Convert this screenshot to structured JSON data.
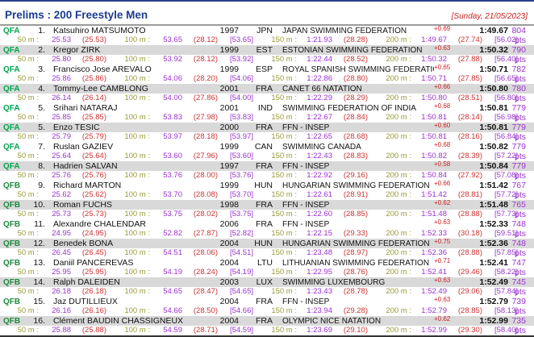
{
  "header": {
    "title": "Prelims : 200 Freestyle Men",
    "date": "[Sunday, 21/05/2023]"
  },
  "labels": {
    "d50": "50 m :",
    "d100": "100 m :",
    "d150": "150 m :",
    "d200": "200 m :"
  },
  "colors": {
    "title_blue": "#1c3c90",
    "date_red": "#cc2222",
    "qfa_green": "#00a651",
    "qfb_green": "#1f8a3d",
    "split_label_olive": "#99993a",
    "split_value_purple": "#9933cc",
    "split_diff_red": "#cc3333",
    "points_purple": "#9933cc",
    "stripe_gray": "#d9d9d9"
  },
  "rows": [
    {
      "qual": "QFA",
      "rank": "1.",
      "name": "Katsuhiro MATSUMOTO",
      "year": "1997",
      "nation": "JPN",
      "club": "JAPAN SWIMMING FEDERATION",
      "reaction": "+0.69",
      "time": "1:49.67",
      "points": "804 pts",
      "s50": "25.53",
      "s50p": "(25.53)",
      "s100": "53.65",
      "s100p": "(28.12)",
      "s100b": "[53.65]",
      "s150": "1:21.93",
      "s150p": "(28.28)",
      "s200": "1:49.67",
      "s200p": "(27.74)",
      "s200b": "[56.02]"
    },
    {
      "qual": "QFA",
      "rank": "2.",
      "name": "Kregor ZIRK",
      "year": "1999",
      "nation": "EST",
      "club": "ESTONIAN SWIMMING FEDERATION",
      "reaction": "+0.63",
      "time": "1:50.32",
      "points": "790 pts",
      "s50": "25.80",
      "s50p": "(25.80)",
      "s100": "53.92",
      "s100p": "(28.12)",
      "s100b": "[53.92]",
      "s150": "1:22.44",
      "s150p": "(28.52)",
      "s200": "1:50.32",
      "s200p": "(27.88)",
      "s200b": "[56.40]"
    },
    {
      "qual": "QFA",
      "rank": "3.",
      "name": "Francisco Jose AREVALO",
      "year": "1999",
      "nation": "ESP",
      "club": "ROYAL SPANISH SWIMMING FEDERATION",
      "reaction": "+0.65",
      "time": "1:50.71",
      "points": "782 pts",
      "s50": "25.86",
      "s50p": "(25.86)",
      "s100": "54.06",
      "s100p": "(28.20)",
      "s100b": "[54.06]",
      "s150": "1:22.86",
      "s150p": "(28.80)",
      "s200": "1:50.71",
      "s200p": "(27.85)",
      "s200b": "[56.65]"
    },
    {
      "qual": "QFA",
      "rank": "4.",
      "name": "Tommy-Lee CAMBLONG",
      "year": "2001",
      "nation": "FRA",
      "club": "CANET 66 NATATION",
      "reaction": "+0.66",
      "time": "1:50.80",
      "points": "780 pts",
      "s50": "26.14",
      "s50p": "(26.14)",
      "s100": "54.00",
      "s100p": "(27.86)",
      "s100b": "[54.00]",
      "s150": "1:22.29",
      "s150p": "(28.29)",
      "s200": "1:50.80",
      "s200p": "(28.51)",
      "s200b": "[56.80]"
    },
    {
      "qual": "QFA",
      "rank": "5.",
      "name": "Srihari NATARAJ",
      "year": "2001",
      "nation": "IND",
      "club": "SWIMMING FEDERATION OF INDIA",
      "reaction": "+0.68",
      "time": "1:50.81",
      "points": "779 pts",
      "s50": "25.85",
      "s50p": "(25.85)",
      "s100": "53.83",
      "s100p": "(27.98)",
      "s100b": "[53.83]",
      "s150": "1:22.67",
      "s150p": "(28.84)",
      "s200": "1:50.81",
      "s200p": "(28.14)",
      "s200b": "[56.98]"
    },
    {
      "qual": "QFA",
      "rank": "5.",
      "name": "Enzo TESIC",
      "year": "2000",
      "nation": "FRA",
      "club": "FFN - INSEP",
      "reaction": "+0.60",
      "time": "1:50.81",
      "points": "779 pts",
      "s50": "25.79",
      "s50p": "(25.79)",
      "s100": "53.97",
      "s100p": "(28.18)",
      "s100b": "[53.97]",
      "s150": "1:22.65",
      "s150p": "(28.68)",
      "s200": "1:50.81",
      "s200p": "(28.16)",
      "s200b": "[56.84]"
    },
    {
      "qual": "QFA",
      "rank": "7.",
      "name": "Ruslan GAZIEV",
      "year": "1999",
      "nation": "CAN",
      "club": "SWIMMING CANADA",
      "reaction": "+0.68",
      "time": "1:50.82",
      "points": "779 pts",
      "s50": "25.64",
      "s50p": "(25.64)",
      "s100": "53.60",
      "s100p": "(27.96)",
      "s100b": "[53.60]",
      "s150": "1:22.43",
      "s150p": "(28.83)",
      "s200": "1:50.82",
      "s200p": "(28.39)",
      "s200b": "[57.22]"
    },
    {
      "qual": "QFA",
      "rank": "8.",
      "name": "Hadrien SALVAN",
      "year": "1997",
      "nation": "FRA",
      "club": "FFN - INSEP",
      "reaction": "+0.58",
      "time": "1:50.84",
      "points": "779 pts",
      "s50": "25.76",
      "s50p": "(25.76)",
      "s100": "53.76",
      "s100p": "(28.00)",
      "s100b": "[53.76]",
      "s150": "1:22.92",
      "s150p": "(29.16)",
      "s200": "1:50.84",
      "s200p": "(27.92)",
      "s200b": "[57.08]"
    },
    {
      "qual": "QFB",
      "rank": "9.",
      "name": "Richard MARTON",
      "year": "1999",
      "nation": "HUN",
      "club": "HUNGARIAN SWIMMING FEDERATION",
      "reaction": "+0.66",
      "time": "1:51.42",
      "points": "767 pts",
      "s50": "25.62",
      "s50p": "(25.62)",
      "s100": "53.70",
      "s100p": "(28.08)",
      "s100b": "[53.70]",
      "s150": "1:22.61",
      "s150p": "(28.91)",
      "s200": "1:51.42",
      "s200p": "(28.81)",
      "s200b": "[57.72]"
    },
    {
      "qual": "QFB",
      "rank": "10.",
      "name": "Roman FUCHS",
      "year": "1998",
      "nation": "FRA",
      "club": "FFN - INSEP",
      "reaction": "+0.62",
      "time": "1:51.48",
      "points": "765 pts",
      "s50": "25.73",
      "s50p": "(25.73)",
      "s100": "53.75",
      "s100p": "(28.02)",
      "s100b": "[53.75]",
      "s150": "1:22.60",
      "s150p": "(28.85)",
      "s200": "1:51.48",
      "s200p": "(28.88)",
      "s200b": "[57.73]"
    },
    {
      "qual": "QFB",
      "rank": "11.",
      "name": "Alexandre CHALENDAR",
      "year": "2006",
      "nation": "FRA",
      "club": "FFN - INSEP",
      "reaction": "+0.63",
      "time": "1:52.33",
      "points": "748 pts",
      "s50": "24.95",
      "s50p": "(24.95)",
      "s100": "52.82",
      "s100p": "(27.87)",
      "s100b": "[52.82]",
      "s150": "1:22.15",
      "s150p": "(29.33)",
      "s200": "1:52.33",
      "s200p": "(30.18)",
      "s200b": "[59.51]"
    },
    {
      "qual": "QFB",
      "rank": "12.",
      "name": "Benedek BONA",
      "year": "2004",
      "nation": "HUN",
      "club": "HUNGARIAN SWIMMING FEDERATION",
      "reaction": "+0.75",
      "time": "1:52.36",
      "points": "748 pts",
      "s50": "26.45",
      "s50p": "(26.45)",
      "s100": "54.51",
      "s100p": "(28.06)",
      "s100b": "[54.51]",
      "s150": "1:23.48",
      "s150p": "(28.97)",
      "s200": "1:52.36",
      "s200p": "(28.88)",
      "s200b": "[57.85]"
    },
    {
      "qual": "QFB",
      "rank": "13.",
      "name": "Daniil PANCEREVAS",
      "year": "2004",
      "nation": "LTU",
      "club": "LITHUANIAN SWIMMING FEDERATION",
      "reaction": "+0.71",
      "time": "1:52.41",
      "points": "747 pts",
      "s50": "25.95",
      "s50p": "(25.95)",
      "s100": "54.19",
      "s100p": "(28.24)",
      "s100b": "[54.19]",
      "s150": "1:22.95",
      "s150p": "(28.76)",
      "s200": "1:52.41",
      "s200p": "(29.46)",
      "s200b": "[58.22]"
    },
    {
      "qual": "QFB",
      "rank": "14.",
      "name": "Ralph DALEIDEN",
      "year": "2003",
      "nation": "LUX",
      "club": "SWIMMING LUXEMBOURG",
      "reaction": "+0.63",
      "time": "1:52.49",
      "points": "745 pts",
      "s50": "26.18",
      "s50p": "(26.18)",
      "s100": "54.65",
      "s100p": "(28.47)",
      "s100b": "[54.65]",
      "s150": "1:23.43",
      "s150p": "(28.78)",
      "s200": "1:52.49",
      "s200p": "(29.06)",
      "s200b": "[57.84]"
    },
    {
      "qual": "QFB",
      "rank": "15.",
      "name": "Jaz DUTILLIEUX",
      "year": "2004",
      "nation": "FRA",
      "club": "FFN - INSEP",
      "reaction": "+0.63",
      "time": "1:52.79",
      "points": "739 pts",
      "s50": "26.16",
      "s50p": "(26.16)",
      "s100": "54.66",
      "s100p": "(28.50)",
      "s100b": "[54.66]",
      "s150": "1:23.94",
      "s150p": "(29.28)",
      "s200": "1:52.79",
      "s200p": "(28.85)",
      "s200b": "[58.13]"
    },
    {
      "qual": "QFB",
      "rank": "16.",
      "name": "Clément BAUDIN CHASSIGNEUX",
      "year": "2004",
      "nation": "FRA",
      "club": "OLYMPIC NICE NATATION",
      "reaction": "+0.62",
      "time": "1:52.99",
      "points": "735 pts",
      "s50": "25.88",
      "s50p": "(25.88)",
      "s100": "54.59",
      "s100p": "(28.71)",
      "s100b": "[54.59]",
      "s150": "1:23.69",
      "s150p": "(29.10)",
      "s200": "1:52.99",
      "s200p": "(29.30)",
      "s200b": "[58.40]"
    }
  ]
}
